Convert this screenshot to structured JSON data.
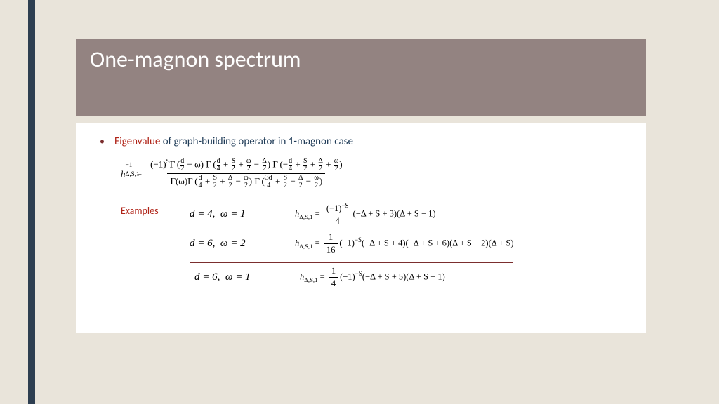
{
  "title": "One-magnon spectrum",
  "bullet": {
    "accent": "Eigenvalue",
    "rest": " of graph-building operator in 1-magnon case"
  },
  "examples_label": "Examples",
  "rows": [
    {
      "cond_d": "d = 4,",
      "cond_w": "ω = 1",
      "lead": "(−Δ + S + 3)(Δ + S − 1)",
      "pref_num": "(−1)",
      "pref_den": "4",
      "pref_exp": "−S"
    },
    {
      "cond_d": "d = 6,",
      "cond_w": "ω = 2",
      "lead": "(−1)",
      "lead2": "(−Δ + S + 4)(−Δ + S + 6)(Δ + S − 2)(Δ + S)",
      "pref_num": "1",
      "pref_den": "16",
      "pref_exp": "−S"
    },
    {
      "cond_d": "d = 6,",
      "cond_w": "ω = 1",
      "lead": "(−1)",
      "lead2": "(−Δ + S + 5)(Δ + S − 1)",
      "pref_num": "1",
      "pref_den": "4",
      "pref_exp": "−S"
    }
  ]
}
